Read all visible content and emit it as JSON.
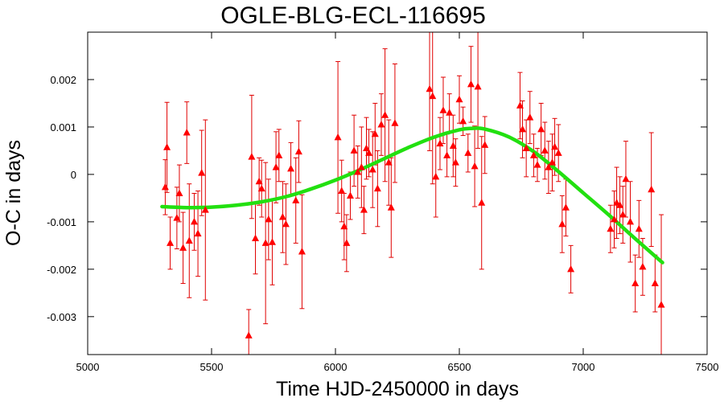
{
  "chart_data": {
    "type": "scatter",
    "title": "OGLE-BLG-ECL-116695",
    "xlabel": "Time HJD-2450000 in days",
    "ylabel": "O-C in days",
    "xlim": [
      5000,
      7500
    ],
    "ylim": [
      -0.0038,
      0.003
    ],
    "xticks": [
      5000,
      5500,
      6000,
      6500,
      7000,
      7500
    ],
    "yticks": [
      0.002,
      0.001,
      0,
      -0.001,
      -0.002,
      -0.003
    ],
    "ytick_labels": [
      "0.002",
      "0.001",
      "0",
      "-0.001",
      "-0.002",
      "-0.003"
    ],
    "grid": false,
    "legend": "none",
    "colors": {
      "points": "#ff0000",
      "error_bars": "#e00000",
      "fit": "#22e010"
    },
    "series": [
      {
        "kind": "points_with_error_bars",
        "points": [
          {
            "x": 5313,
            "y": -0.00027,
            "err": 0.00058
          },
          {
            "x": 5320,
            "y": 0.00057,
            "err": 0.00095
          },
          {
            "x": 5333,
            "y": -0.00145,
            "err": 0.00055
          },
          {
            "x": 5360,
            "y": -0.00092,
            "err": 0.00065
          },
          {
            "x": 5370,
            "y": -0.0004,
            "err": 0.0006
          },
          {
            "x": 5385,
            "y": -0.00155,
            "err": 0.00075
          },
          {
            "x": 5400,
            "y": 0.00088,
            "err": 0.00065
          },
          {
            "x": 5410,
            "y": -0.0014,
            "err": 0.0012
          },
          {
            "x": 5430,
            "y": -0.001,
            "err": 0.0006
          },
          {
            "x": 5445,
            "y": -0.00125,
            "err": 0.0009
          },
          {
            "x": 5460,
            "y": 3e-05,
            "err": 0.0009
          },
          {
            "x": 5475,
            "y": -0.00075,
            "err": 0.0019
          },
          {
            "x": 5650,
            "y": -0.0034,
            "err": 0.00055
          },
          {
            "x": 5662,
            "y": 0.00037,
            "err": 0.0013
          },
          {
            "x": 5677,
            "y": -0.00135,
            "err": 0.00075
          },
          {
            "x": 5692,
            "y": -0.00015,
            "err": 0.0005
          },
          {
            "x": 5702,
            "y": -0.0003,
            "err": 0.0006
          },
          {
            "x": 5718,
            "y": -0.00145,
            "err": 0.0017
          },
          {
            "x": 5730,
            "y": -0.00095,
            "err": 0.00085
          },
          {
            "x": 5745,
            "y": -0.00143,
            "err": 0.0009
          },
          {
            "x": 5760,
            "y": 0.00015,
            "err": 0.00075
          },
          {
            "x": 5772,
            "y": 0.0004,
            "err": 0.00055
          },
          {
            "x": 5787,
            "y": -0.0009,
            "err": 0.00075
          },
          {
            "x": 5800,
            "y": -0.00105,
            "err": 0.00085
          },
          {
            "x": 5820,
            "y": 0.00012,
            "err": 0.00055
          },
          {
            "x": 5840,
            "y": -0.00055,
            "err": 0.0009
          },
          {
            "x": 5852,
            "y": 0.00048,
            "err": 0.00065
          },
          {
            "x": 5865,
            "y": -0.00163,
            "err": 0.0012
          },
          {
            "x": 6010,
            "y": 0.00078,
            "err": 0.0016
          },
          {
            "x": 6025,
            "y": -0.00035,
            "err": 0.00065
          },
          {
            "x": 6035,
            "y": -0.0011,
            "err": 0.0007
          },
          {
            "x": 6045,
            "y": -0.00145,
            "err": 0.0006
          },
          {
            "x": 6060,
            "y": -0.00045,
            "err": 0.0005
          },
          {
            "x": 6075,
            "y": 0.0005,
            "err": 0.00075
          },
          {
            "x": 6090,
            "y": 5e-05,
            "err": 0.00055
          },
          {
            "x": 6105,
            "y": 0.00015,
            "err": 0.00085
          },
          {
            "x": 6115,
            "y": -0.00075,
            "err": 0.0005
          },
          {
            "x": 6125,
            "y": 0.00055,
            "err": 0.00065
          },
          {
            "x": 6135,
            "y": 0.00045,
            "err": 0.0005
          },
          {
            "x": 6150,
            "y": 0.0001,
            "err": 0.0008
          },
          {
            "x": 6160,
            "y": 0.00085,
            "err": 0.00065
          },
          {
            "x": 6170,
            "y": -0.0003,
            "err": 0.0008
          },
          {
            "x": 6185,
            "y": 0.00105,
            "err": 0.00065
          },
          {
            "x": 6200,
            "y": 0.00125,
            "err": 0.0014
          },
          {
            "x": 6215,
            "y": 0.00025,
            "err": 0.0009
          },
          {
            "x": 6225,
            "y": -0.0007,
            "err": 0.00105
          },
          {
            "x": 6240,
            "y": 0.00108,
            "err": 0.00125
          },
          {
            "x": 6380,
            "y": 0.0018,
            "err": 0.0013
          },
          {
            "x": 6392,
            "y": 0.00165,
            "err": 0.00185
          },
          {
            "x": 6405,
            "y": -5e-05,
            "err": 0.00085
          },
          {
            "x": 6422,
            "y": 0.00065,
            "err": 0.00055
          },
          {
            "x": 6435,
            "y": 0.00135,
            "err": 0.0007
          },
          {
            "x": 6450,
            "y": 0.0004,
            "err": 0.00045
          },
          {
            "x": 6460,
            "y": 0.0013,
            "err": 0.0004
          },
          {
            "x": 6475,
            "y": 0.0006,
            "err": 0.00065
          },
          {
            "x": 6485,
            "y": 0.00025,
            "err": 0.0005
          },
          {
            "x": 6500,
            "y": 0.00158,
            "err": 0.0005
          },
          {
            "x": 6515,
            "y": 0.00112,
            "err": 0.0003
          },
          {
            "x": 6535,
            "y": 0.00045,
            "err": 0.0004
          },
          {
            "x": 6547,
            "y": 0.0019,
            "err": 0.0008
          },
          {
            "x": 6562,
            "y": 0.00017,
            "err": 0.00085
          },
          {
            "x": 6575,
            "y": 0.00185,
            "err": 0.0013
          },
          {
            "x": 6590,
            "y": -0.0006,
            "err": 0.0014
          },
          {
            "x": 6603,
            "y": 0.00062,
            "err": 0.0006
          },
          {
            "x": 6745,
            "y": 0.00145,
            "err": 0.0007
          },
          {
            "x": 6755,
            "y": 0.00095,
            "err": 0.0006
          },
          {
            "x": 6770,
            "y": 0.00055,
            "err": 0.0006
          },
          {
            "x": 6785,
            "y": 0.0012,
            "err": 0.00055
          },
          {
            "x": 6800,
            "y": 0.0004,
            "err": 0.00045
          },
          {
            "x": 6815,
            "y": 0.0002,
            "err": 0.00035
          },
          {
            "x": 6830,
            "y": 0.00095,
            "err": 0.00055
          },
          {
            "x": 6845,
            "y": 0.0005,
            "err": 0.0006
          },
          {
            "x": 6860,
            "y": 0.00015,
            "err": 0.00055
          },
          {
            "x": 6875,
            "y": 0.00025,
            "err": 0.0006
          },
          {
            "x": 6885,
            "y": 0.00058,
            "err": 0.0006
          },
          {
            "x": 6900,
            "y": 0.00045,
            "err": 0.0006
          },
          {
            "x": 6915,
            "y": -0.00105,
            "err": 0.0006
          },
          {
            "x": 6930,
            "y": -0.0007,
            "err": 0.0006
          },
          {
            "x": 6950,
            "y": -0.002,
            "err": 0.0005
          },
          {
            "x": 7110,
            "y": -0.00115,
            "err": 0.0005
          },
          {
            "x": 7125,
            "y": -0.00095,
            "err": 0.0006
          },
          {
            "x": 7135,
            "y": -0.0006,
            "err": 0.00075
          },
          {
            "x": 7148,
            "y": -0.00065,
            "err": 0.0006
          },
          {
            "x": 7160,
            "y": -0.00085,
            "err": 0.0006
          },
          {
            "x": 7172,
            "y": -0.0001,
            "err": 0.0008
          },
          {
            "x": 7190,
            "y": -0.001,
            "err": 0.00085
          },
          {
            "x": 7210,
            "y": -0.0023,
            "err": 0.0006
          },
          {
            "x": 7225,
            "y": -0.00115,
            "err": 0.0006
          },
          {
            "x": 7240,
            "y": -0.00195,
            "err": 0.0006
          },
          {
            "x": 7275,
            "y": -0.00032,
            "err": 0.0012
          },
          {
            "x": 7290,
            "y": -0.0023,
            "err": 0.0006
          },
          {
            "x": 7315,
            "y": -0.00275,
            "err": 0.0019
          }
        ]
      },
      {
        "kind": "fit_curve",
        "x": [
          5300,
          5400,
          5500,
          5600,
          5700,
          5800,
          5900,
          6000,
          6100,
          6200,
          6300,
          6400,
          6500,
          6550,
          6600,
          6700,
          6800,
          6900,
          7000,
          7100,
          7200,
          7300,
          7320
        ],
        "y": [
          -0.00068,
          -0.0007,
          -0.00069,
          -0.00065,
          -0.00058,
          -0.00047,
          -0.00031,
          -0.00012,
          0.0001,
          0.00034,
          0.00058,
          0.00079,
          0.00094,
          0.00097,
          0.00096,
          0.00079,
          0.00048,
          6e-05,
          -0.00039,
          -0.00084,
          -0.00131,
          -0.00177,
          -0.00186
        ]
      }
    ]
  }
}
